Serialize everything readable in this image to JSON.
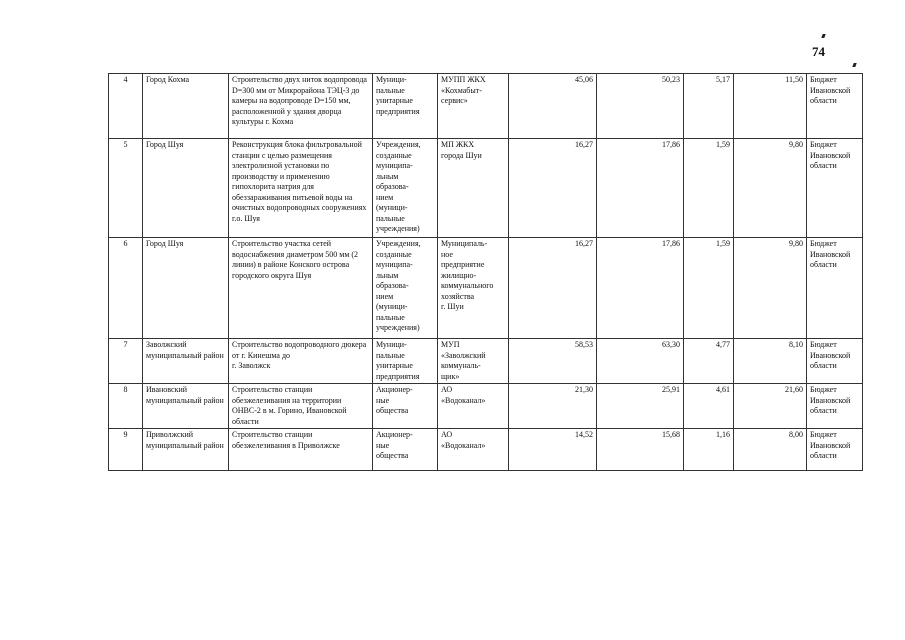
{
  "page_number": "74",
  "rows": [
    {
      "no": "4",
      "territory": "Город Кохма",
      "project": "Строительство двух ниток водопровода D=300 мм от Микрорайона ТЭЦ-3 до камеры на водопроводе D=150 мм, расположенной у здания дворца культуры г. Кохма",
      "org_type": "Муници-\nпальные\nунитарные\nпредприятия",
      "operator": "МУПП ЖКХ\n«Кохмабыт-\nсервис»",
      "v1": "45,06",
      "v2": "50,23",
      "v3": "5,17",
      "v4": "11,50",
      "source": "Бюджет\nИвановской\nобласти"
    },
    {
      "no": "5",
      "territory": "Город Шуя",
      "project": "Реконструкция блока фильтровальной станции  с целью размещения электролизной установки по производству и применению гипохлорита натрия для обеззараживания питьевой воды на очистных водопроводных сооружениях г.о. Шуя",
      "org_type": "Учреждения,\nсозданные\nмуниципа-\nльным\nобразова-\nнием\n(муници-\nпальные\nучреждения)",
      "operator": "МП ЖКХ\nгорода Шуи",
      "v1": "16,27",
      "v2": "17,86",
      "v3": "1,59",
      "v4": "9,80",
      "source": "Бюджет\nИвановской\nобласти"
    },
    {
      "no": "6",
      "territory": "Город Шуя",
      "project": "Строительство участка сетей водоснабжения диаметром 500 мм (2 линии) в районе Конского острова городского округа Шуя",
      "org_type": "Учреждения,\nсозданные\nмуниципа-\nльным\nобразова-\nнием\n(муници-\nпальные\nучреждения)",
      "operator": "Муниципаль-\nное\nпредприятие\nжилищно-\nкоммунального\nхозяйства\nг. Шуи",
      "v1": "16,27",
      "v2": "17,86",
      "v3": "1,59",
      "v4": "9,80",
      "source": "Бюджет\nИвановской\nобласти"
    },
    {
      "no": "7",
      "territory": "Заволжский муниципальный район",
      "project": "Строительство водопроводного дюкера от г. Кинешма до\nг. Заволжск",
      "org_type": "Муници-\nпальные\nунитарные\nпредприятия",
      "operator": "МУП\n«Заволжский\nкоммуналь-\nщик»",
      "v1": "58,53",
      "v2": "63,30",
      "v3": "4,77",
      "v4": "8,10",
      "source": "Бюджет\nИвановской\nобласти"
    },
    {
      "no": "8",
      "territory": "Ивановский муниципальный район",
      "project": "Строительство станции обезжелезивания на территории ОНВС-2 в м. Горино, Ивановской области",
      "org_type": "Акционер-\nные\nобщества",
      "operator": "АО\n«Водоканал»",
      "v1": "21,30",
      "v2": "25,91",
      "v3": "4,61",
      "v4": "21,60",
      "source": "Бюджет\nИвановской\nобласти"
    },
    {
      "no": "9",
      "territory": "Приволжский муниципальный район",
      "project": "Строительство станции обезжелезивания в Приволжске",
      "org_type": "Акционер-\nные\nобщества",
      "operator": "АО\n«Водоканал»",
      "v1": "14,52",
      "v2": "15,68",
      "v3": "1,16",
      "v4": "8,00",
      "source": "Бюджет\nИвановской\nобласти"
    }
  ]
}
